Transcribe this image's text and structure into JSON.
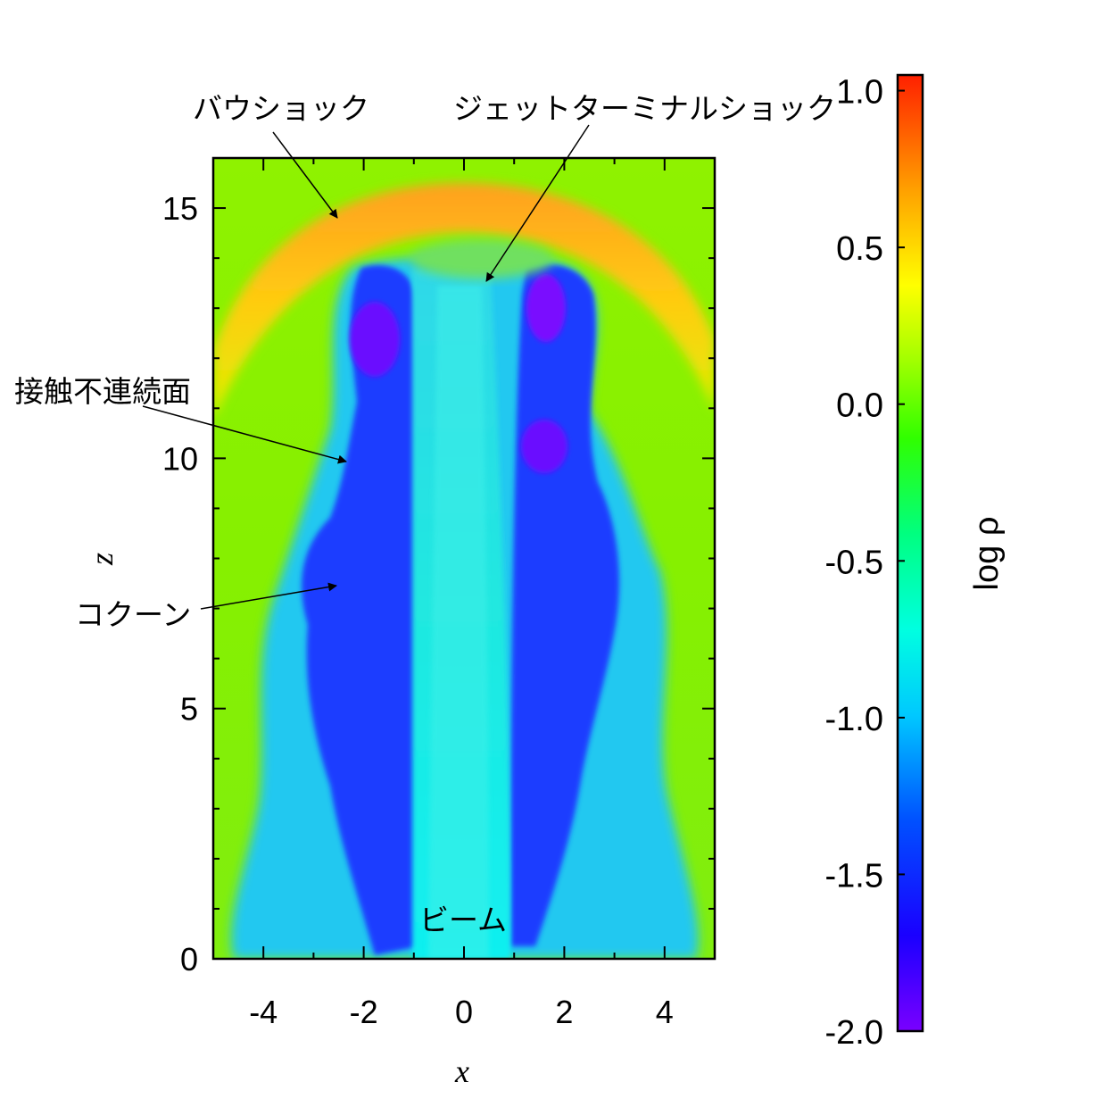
{
  "chart_data": {
    "type": "heatmap",
    "xlabel": "x",
    "ylabel": "z",
    "xlim": [
      -5,
      5
    ],
    "ylim": [
      0,
      16
    ],
    "x_ticks": [
      "-4",
      "-2",
      "0",
      "2",
      "4"
    ],
    "y_ticks": [
      "0",
      "5",
      "10",
      "15"
    ],
    "colorbar": {
      "label": "log ρ",
      "range": [
        -2.0,
        1.05
      ],
      "ticks": [
        "1.0",
        "0.5",
        "0.0",
        "-0.5",
        "-1.0",
        "-1.5",
        "-2.0"
      ],
      "colormap": [
        "#7a00ff",
        "#1a00ff",
        "#0050ff",
        "#00c8ff",
        "#00ffe0",
        "#00ff80",
        "#30ff00",
        "#a0ff00",
        "#ffff00",
        "#ffa000",
        "#ff2000"
      ]
    },
    "annotations": [
      {
        "text": "バウショック"
      },
      {
        "text": "ジェットターミナルショック"
      },
      {
        "text": "接触不連続面"
      },
      {
        "text": "コクーン"
      },
      {
        "text": "ビーム"
      }
    ],
    "regions": {
      "ambient_level": -0.2,
      "bow_shock_level": 0.6,
      "cocoon_level": -1.6,
      "beam_level": -1.0
    }
  }
}
